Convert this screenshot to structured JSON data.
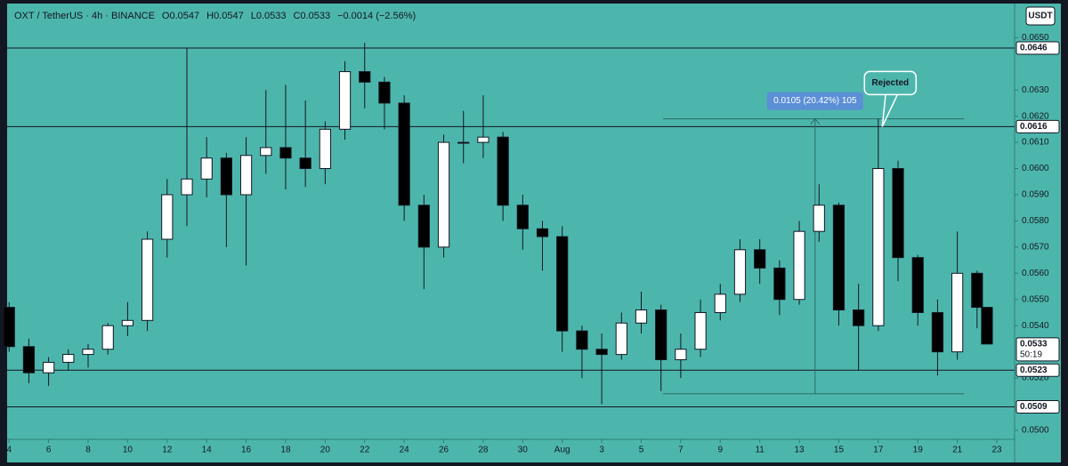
{
  "chart_data": {
    "type": "candlestick",
    "title": "OXT / TetherUS · 4h · BINANCE",
    "ohlc_labels": [
      "O0.0547",
      "H0.0547",
      "L0.0533",
      "C0.0533"
    ],
    "change": "−0.0014 (−2.56%)",
    "currency": "USDT",
    "up_color": "#ffffff",
    "down_color": "#000000",
    "x": [
      0,
      1,
      2,
      3,
      4,
      5,
      6,
      7,
      8,
      9,
      10,
      11,
      12,
      13,
      14,
      15,
      16,
      17,
      18,
      19,
      20,
      21,
      22,
      23,
      24,
      25,
      26,
      27,
      28,
      29,
      30,
      31,
      32,
      33,
      34,
      35,
      36,
      37,
      38,
      39,
      40,
      41,
      42,
      43,
      44,
      45,
      46,
      47,
      48,
      49,
      49.5
    ],
    "open": [
      0.0547,
      0.0532,
      0.0522,
      0.0526,
      0.0529,
      0.0531,
      0.054,
      0.0542,
      0.0573,
      0.059,
      0.0596,
      0.0604,
      0.059,
      0.0605,
      0.0608,
      0.0604,
      0.06,
      0.0615,
      0.0637,
      0.0633,
      0.0625,
      0.0586,
      0.057,
      0.061,
      0.061,
      0.0612,
      0.0586,
      0.0577,
      0.0574,
      0.0538,
      0.0531,
      0.0529,
      0.0541,
      0.0546,
      0.0527,
      0.0531,
      0.0545,
      0.0552,
      0.0569,
      0.0562,
      0.055,
      0.0576,
      0.0586,
      0.0546,
      0.054,
      0.06,
      0.0566,
      0.0545,
      0.053,
      0.056,
      0.0547
    ],
    "high": [
      0.0549,
      0.0535,
      0.0528,
      0.0531,
      0.0533,
      0.0541,
      0.0549,
      0.0576,
      0.0596,
      0.0646,
      0.0612,
      0.0606,
      0.0612,
      0.063,
      0.0632,
      0.0626,
      0.0618,
      0.0641,
      0.0648,
      0.0635,
      0.0628,
      0.059,
      0.0613,
      0.0622,
      0.0628,
      0.0614,
      0.059,
      0.058,
      0.0578,
      0.054,
      0.0537,
      0.0545,
      0.0553,
      0.0548,
      0.0537,
      0.055,
      0.0556,
      0.0573,
      0.0573,
      0.0565,
      0.058,
      0.0594,
      0.0587,
      0.0556,
      0.0619,
      0.0603,
      0.0567,
      0.055,
      0.0576,
      0.0561,
      0.0547
    ],
    "low": [
      0.053,
      0.0518,
      0.0517,
      0.0523,
      0.0524,
      0.0529,
      0.0536,
      0.0538,
      0.0566,
      0.0578,
      0.0589,
      0.057,
      0.0563,
      0.0598,
      0.0592,
      0.0593,
      0.0594,
      0.0611,
      0.0623,
      0.0615,
      0.058,
      0.0554,
      0.0566,
      0.0602,
      0.0604,
      0.058,
      0.0569,
      0.0561,
      0.053,
      0.052,
      0.051,
      0.0527,
      0.0537,
      0.0515,
      0.052,
      0.0528,
      0.0542,
      0.0549,
      0.0556,
      0.0544,
      0.0548,
      0.0572,
      0.054,
      0.0523,
      0.0538,
      0.0557,
      0.054,
      0.0521,
      0.0527,
      0.0539,
      0.0533
    ],
    "close": [
      0.0532,
      0.0522,
      0.0526,
      0.0529,
      0.0531,
      0.054,
      0.0542,
      0.0573,
      0.059,
      0.0596,
      0.0604,
      0.059,
      0.0605,
      0.0608,
      0.0604,
      0.06,
      0.0615,
      0.0637,
      0.0633,
      0.0625,
      0.0586,
      0.057,
      0.061,
      0.061,
      0.0612,
      0.0586,
      0.0577,
      0.0574,
      0.0538,
      0.0531,
      0.0529,
      0.0541,
      0.0546,
      0.0527,
      0.0531,
      0.0545,
      0.0552,
      0.0569,
      0.0562,
      0.055,
      0.0576,
      0.0586,
      0.0546,
      0.054,
      0.06,
      0.0566,
      0.0545,
      0.053,
      0.056,
      0.0547,
      0.0533
    ],
    "xlim": [
      -0.1,
      50.9
    ],
    "ylim": [
      0.04966,
      0.0663
    ],
    "xticks": [
      {
        "value": 0,
        "label": "4"
      },
      {
        "value": 2,
        "label": "6"
      },
      {
        "value": 4,
        "label": "8"
      },
      {
        "value": 6,
        "label": "10"
      },
      {
        "value": 8,
        "label": "12"
      },
      {
        "value": 10,
        "label": "14"
      },
      {
        "value": 12,
        "label": "16"
      },
      {
        "value": 14,
        "label": "18"
      },
      {
        "value": 16,
        "label": "20"
      },
      {
        "value": 18,
        "label": "22"
      },
      {
        "value": 20,
        "label": "24"
      },
      {
        "value": 22,
        "label": "26"
      },
      {
        "value": 24,
        "label": "28"
      },
      {
        "value": 26,
        "label": "30"
      },
      {
        "value": 28,
        "label": "Aug"
      },
      {
        "value": 30,
        "label": "3"
      },
      {
        "value": 32,
        "label": "5"
      },
      {
        "value": 34,
        "label": "7"
      },
      {
        "value": 36,
        "label": "9"
      },
      {
        "value": 38,
        "label": "11"
      },
      {
        "value": 40,
        "label": "13"
      },
      {
        "value": 42,
        "label": "15"
      },
      {
        "value": 44,
        "label": "17"
      },
      {
        "value": 46,
        "label": "19"
      },
      {
        "value": 48,
        "label": "21"
      },
      {
        "value": 50,
        "label": "23"
      }
    ],
    "yticks": [
      {
        "value": 0.05,
        "label": "0.0500"
      },
      {
        "value": 0.052,
        "label": "0.0520"
      },
      {
        "value": 0.054,
        "label": "0.0540"
      },
      {
        "value": 0.055,
        "label": "0.0550"
      },
      {
        "value": 0.056,
        "label": "0.0560"
      },
      {
        "value": 0.057,
        "label": "0.0570"
      },
      {
        "value": 0.058,
        "label": "0.0580"
      },
      {
        "value": 0.059,
        "label": "0.0590"
      },
      {
        "value": 0.06,
        "label": "0.0600"
      },
      {
        "value": 0.061,
        "label": "0.0610"
      },
      {
        "value": 0.062,
        "label": "0.0620"
      },
      {
        "value": 0.063,
        "label": "0.0630"
      },
      {
        "value": 0.065,
        "label": "0.0650"
      }
    ],
    "grid": false,
    "levels": [
      {
        "value": 0.0646,
        "label": "0.0646"
      },
      {
        "value": 0.0616,
        "label": "0.0616"
      },
      {
        "value": 0.0523,
        "label": "0.0523"
      },
      {
        "value": 0.0509,
        "label": "0.0509"
      }
    ],
    "last_price": {
      "value": 0.0533,
      "label": "0.0533",
      "countdown": "50:19"
    },
    "measure": {
      "label": "0.0105 (20.42%) 105",
      "top": 0.0619,
      "bottom": 0.0514,
      "x_start": 33.1,
      "x_end": 48.35,
      "x_arrow": 40.8
    },
    "annotation": {
      "text": "Rejected",
      "x": 44.2,
      "y": 0.0616
    }
  }
}
